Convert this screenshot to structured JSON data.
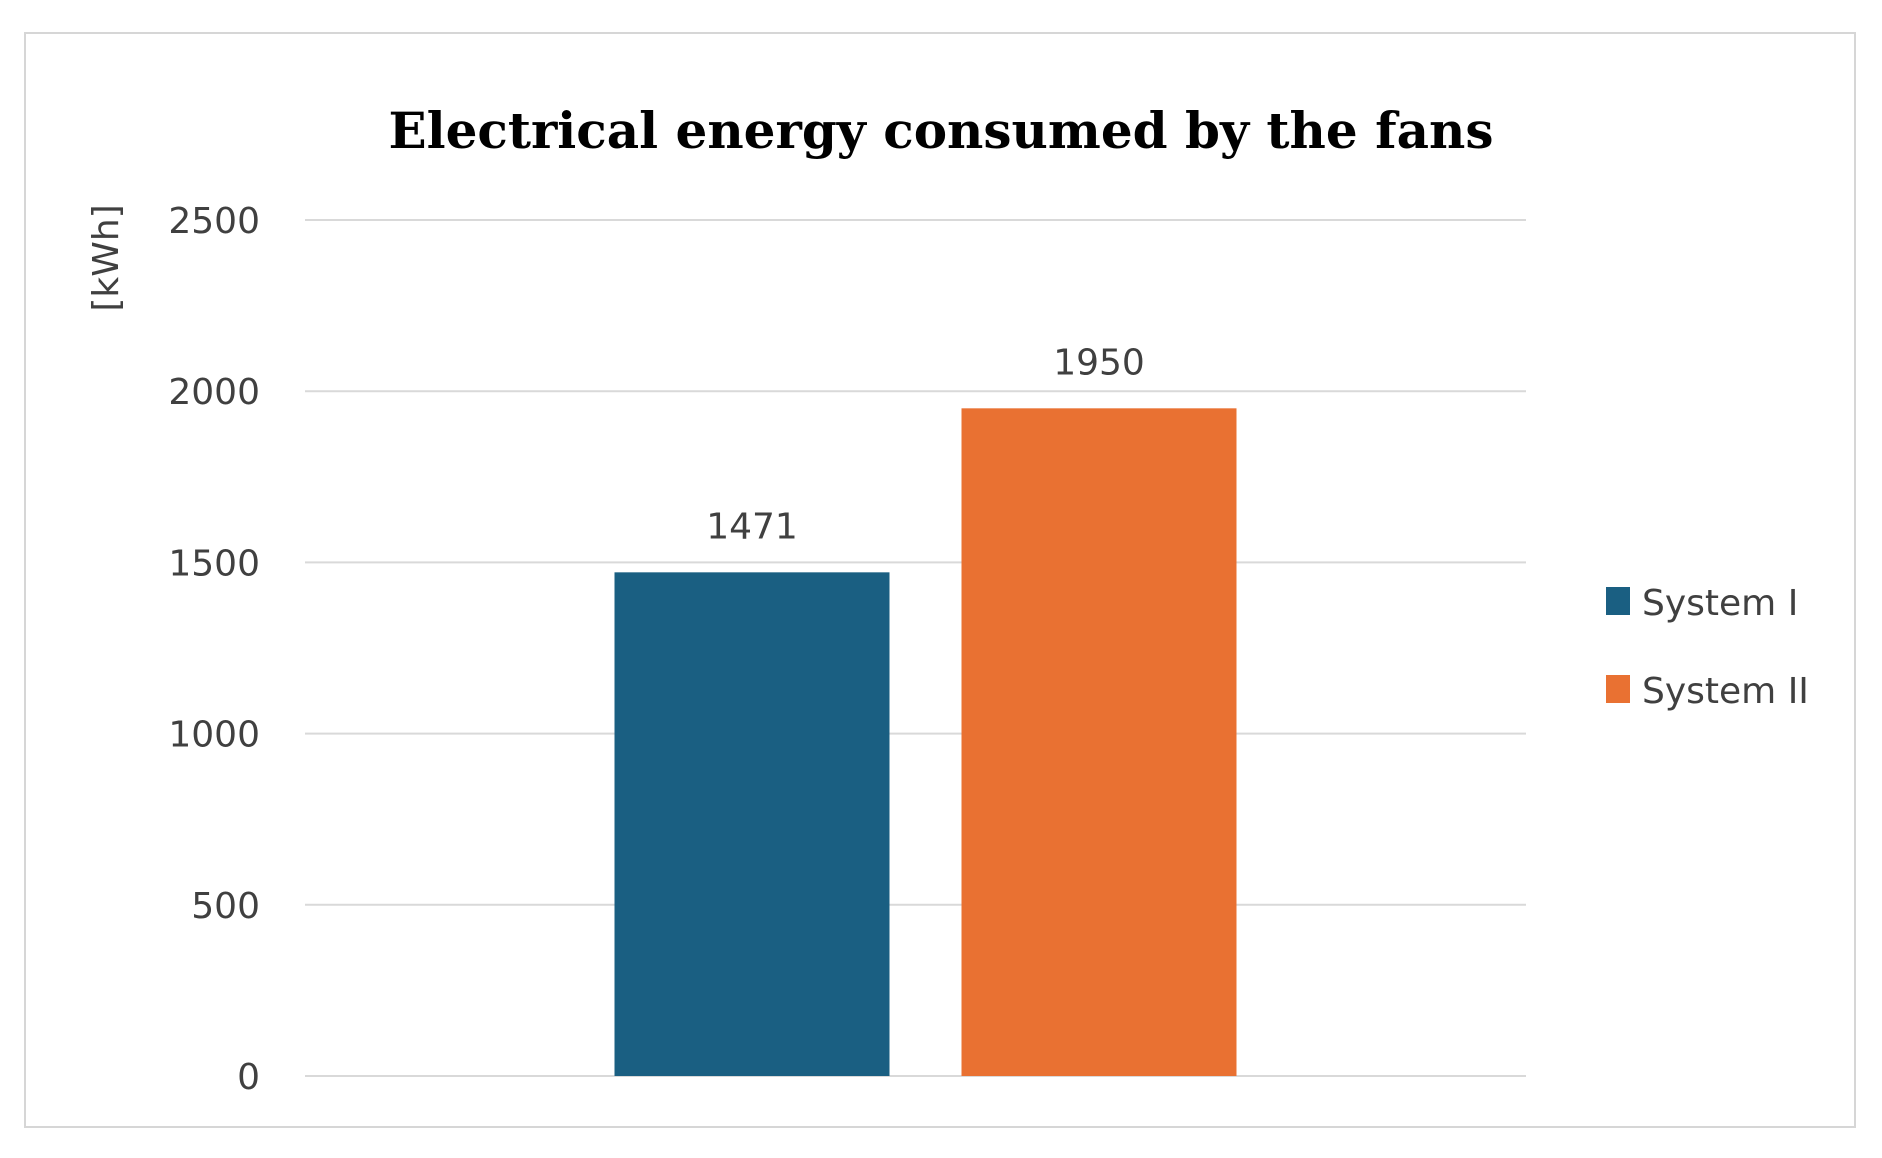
{
  "chart_data": {
    "type": "bar",
    "title": "Electrical energy consumed by the fans",
    "xlabel": "",
    "ylabel": "[kWh]",
    "ylim": [
      0,
      2500
    ],
    "yticks": [
      0,
      500,
      1000,
      1500,
      2000,
      2500
    ],
    "grid": true,
    "legend_position": "right",
    "series": [
      {
        "name": "System I",
        "values": [
          1471
        ],
        "color": "#1a5f82"
      },
      {
        "name": "System II",
        "values": [
          1950
        ],
        "color": "#e97132"
      }
    ]
  }
}
